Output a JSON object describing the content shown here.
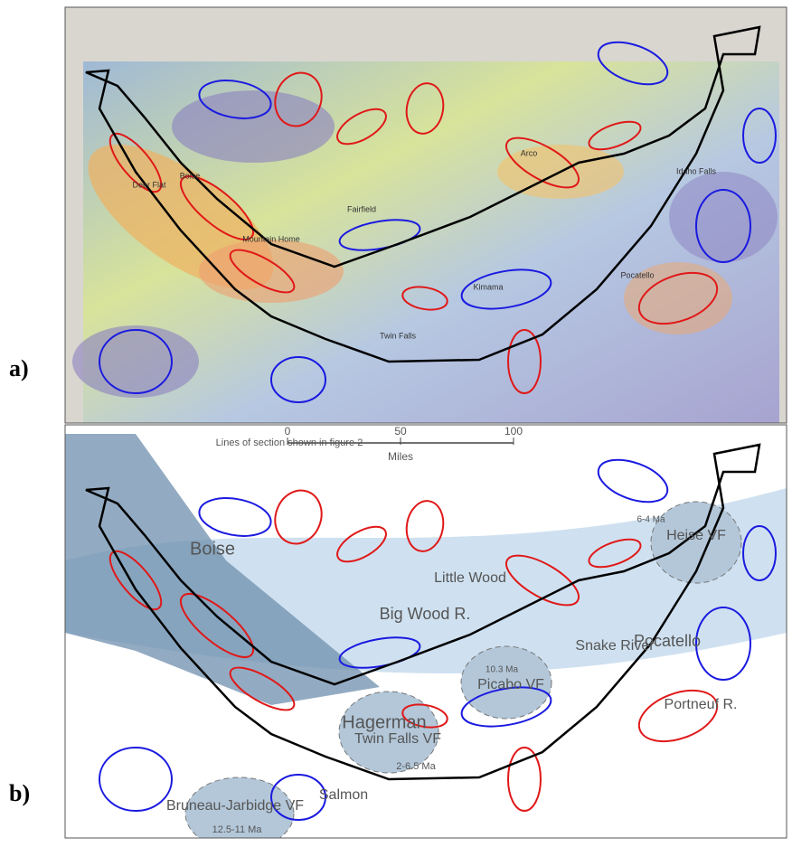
{
  "panels": [
    {
      "tag": "a)",
      "labels": [
        "Boise",
        "Deer Flat",
        "Fairfield",
        "Mountain Home",
        "Twin Falls",
        "Pocatello",
        "Idaho Falls",
        "Arco",
        "Kimama"
      ]
    },
    {
      "tag": "b)",
      "labels": [
        "Lines of section shown in figure 2",
        "Boise",
        "Big Wood R.",
        "Little Wood",
        "Snake River",
        "6-4 Ma",
        "Heise VF",
        "10.3 Ma",
        "Picabo VF",
        "Pocatello",
        "Portneuf R.",
        "Hagerman",
        "Twin Falls VF",
        "2-6.5 Ma",
        "Salmon",
        "Bruneau-Jarbidge VF",
        "12.5-11 Ma"
      ],
      "scale": {
        "ticks": [
          0,
          50,
          100
        ],
        "unit": "Miles"
      }
    }
  ]
}
